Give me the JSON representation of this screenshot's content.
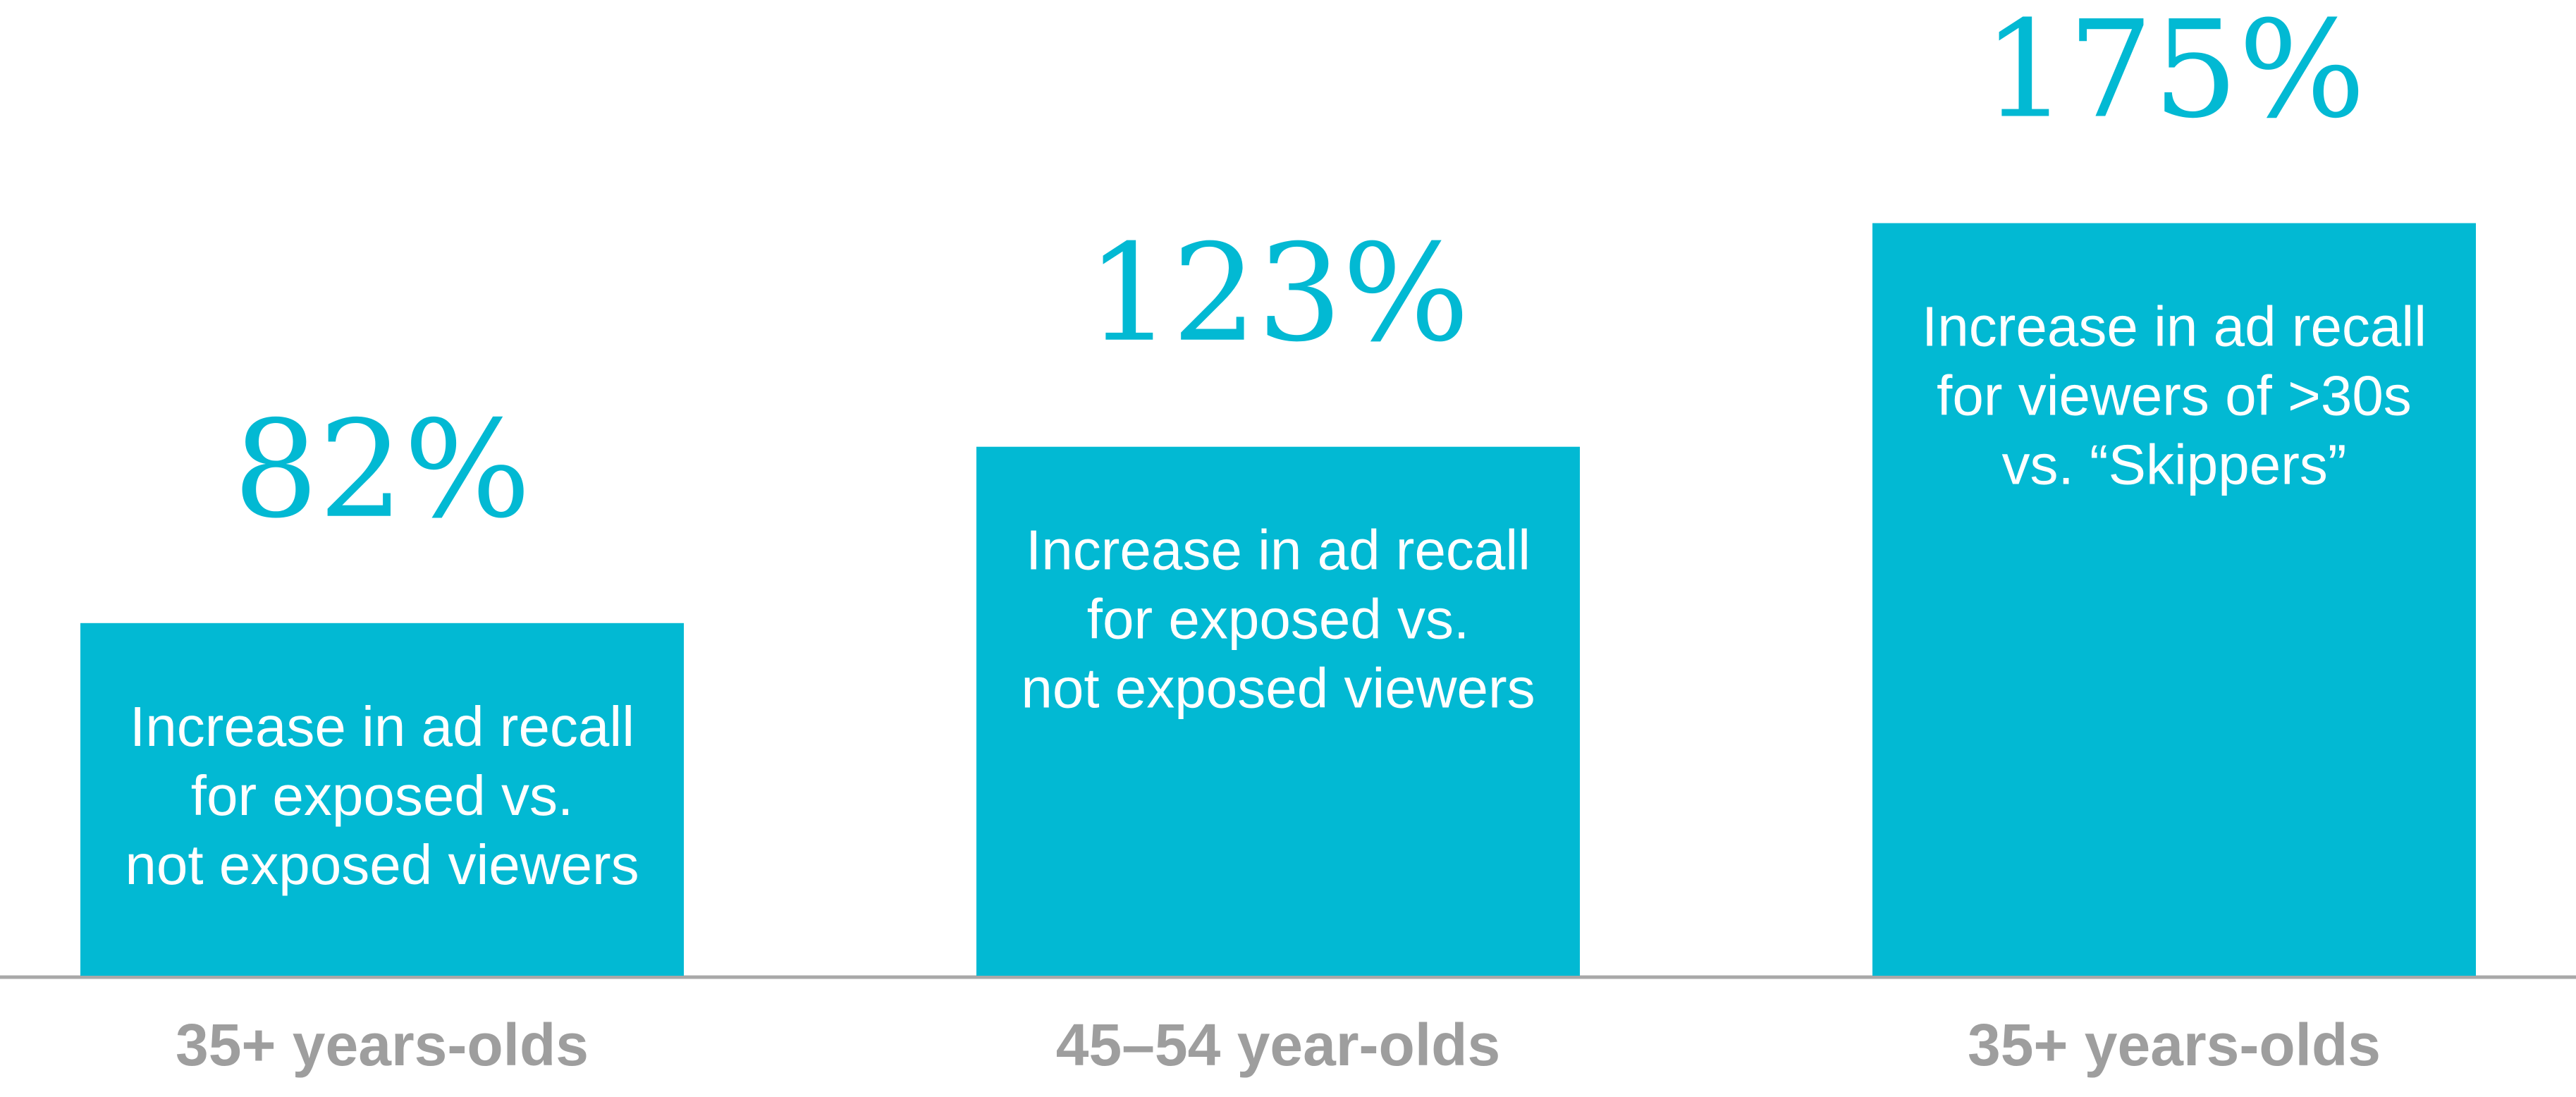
{
  "chart_data": {
    "type": "bar",
    "categories": [
      "35+ years-olds",
      "45–54 year-olds",
      "35+ years-olds"
    ],
    "values": [
      82,
      123,
      175
    ],
    "value_labels": [
      "82%",
      "123%",
      "175%"
    ],
    "annotations": [
      [
        "Increase in ad recall",
        "for exposed vs.",
        "not exposed viewers"
      ],
      [
        "Increase in ad recall",
        "for exposed vs.",
        "not exposed viewers"
      ],
      [
        "Increase in ad recall",
        "for viewers of >30s",
        "vs. “Skippers”"
      ]
    ],
    "color": "#02b9d3"
  }
}
